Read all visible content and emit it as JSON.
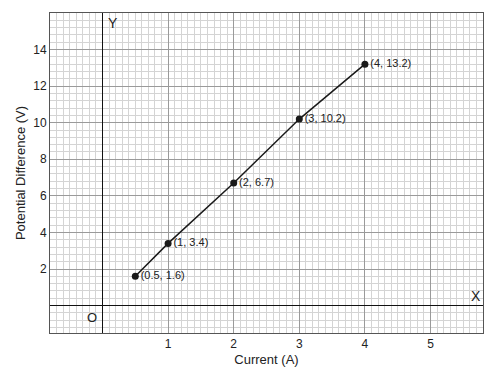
{
  "chart_data": {
    "type": "line",
    "x_label": "Current (A)",
    "y_label": "Potential Difference (V)",
    "x": [
      0.5,
      1,
      2,
      3,
      4
    ],
    "values": [
      1.6,
      3.4,
      6.7,
      10.2,
      13.2
    ],
    "value_labels": [
      "(0.5, 1.6)",
      "(1, 3.4)",
      "(2, 6.7)",
      "(3, 10.2)",
      "(4, 13.2)"
    ],
    "data_labels": true,
    "color": "#1a1a1a",
    "marker": "circle",
    "line_style": "solid",
    "xlim": [
      -0.8,
      5.8
    ],
    "ylim": [
      -1.5,
      16
    ],
    "xticks": [
      1,
      2,
      3,
      4,
      5
    ],
    "yticks": [
      2,
      4,
      6,
      8,
      10,
      12,
      14
    ],
    "grid": true,
    "annotations": {
      "x_end": "X",
      "y_end": "Y",
      "origin": "O"
    }
  }
}
